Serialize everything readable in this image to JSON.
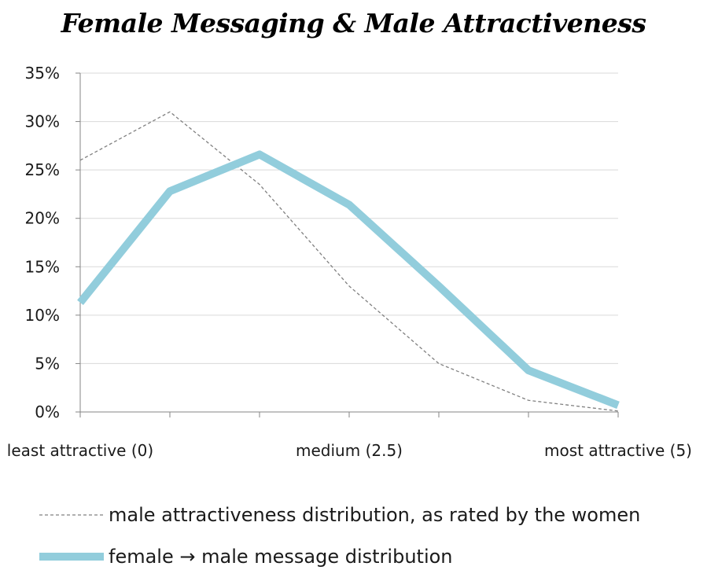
{
  "chart_data": {
    "type": "line",
    "title": "Female Messaging & Male Attractiveness",
    "x_tick_labels": [
      "least attractive (0)",
      "medium (2.5)",
      "most attractive (5)"
    ],
    "x": [
      0,
      0.8333,
      1.6667,
      2.5,
      3.3333,
      4.1667,
      5
    ],
    "y_tick_labels": [
      "0%",
      "5%",
      "10%",
      "15%",
      "20%",
      "25%",
      "30%",
      "35%"
    ],
    "ylim": [
      0,
      35
    ],
    "grid": true,
    "legend_position": "bottom",
    "series": [
      {
        "name": "male attractiveness distribution, as rated by the women",
        "values": [
          26,
          31,
          23.5,
          13,
          5,
          1.2,
          0.1
        ],
        "color": "#808080",
        "style": "dashed"
      },
      {
        "name": "female → male message distribution",
        "values": [
          11.3,
          22.8,
          26.6,
          21.4,
          13,
          4.3,
          0.7
        ],
        "color": "#92cddc",
        "style": "solid-thick"
      }
    ]
  }
}
